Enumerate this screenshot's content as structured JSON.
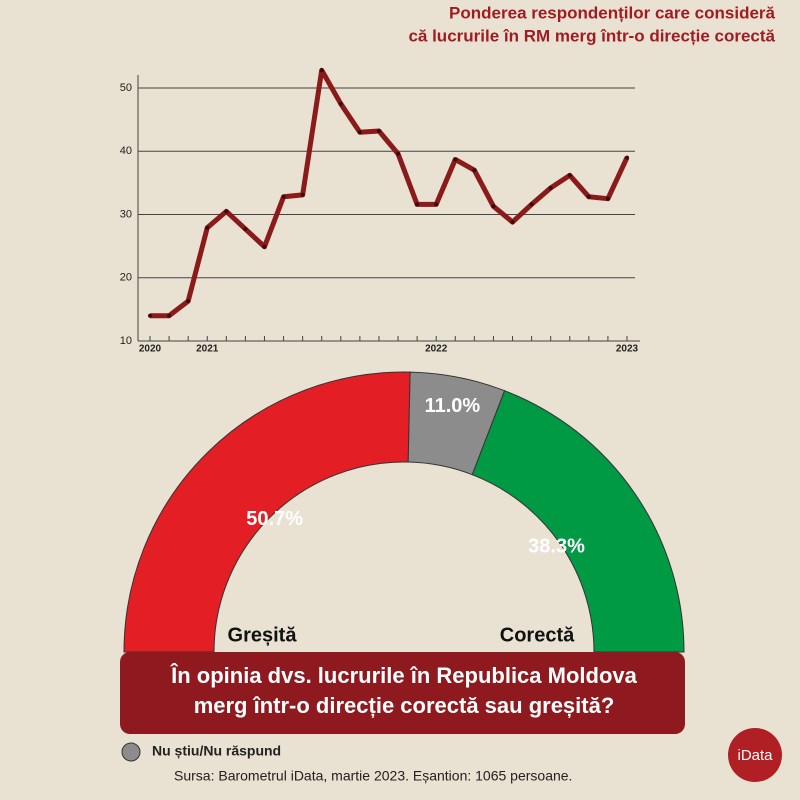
{
  "chart_data": [
    {
      "type": "line",
      "title": [
        "Ponderea respondenților care consideră",
        "că lucrurile în RM merg într-o direcție corectă"
      ],
      "categories": [
        "2020",
        null,
        null,
        "2021",
        null,
        null,
        null,
        null,
        null,
        null,
        null,
        null,
        null,
        null,
        null,
        "2022",
        null,
        null,
        null,
        null,
        null,
        null,
        null,
        null,
        null,
        "2023"
      ],
      "series": [
        {
          "name": "corectă",
          "color": "#8b1a1a",
          "values": [
            14,
            14,
            16.3,
            27.9,
            30.5,
            27.7,
            24.9,
            32.8,
            33.1,
            52.8,
            47.5,
            43,
            43.2,
            39.6,
            31.6,
            31.6,
            38.7,
            37,
            31.3,
            28.8,
            31.6,
            34.2,
            36.2,
            32.8,
            32.5,
            39
          ]
        }
      ],
      "ylim": [
        10,
        50
      ],
      "yticks": [
        10,
        20,
        30,
        40,
        50
      ],
      "grid": true
    },
    {
      "type": "half-donut",
      "title": [
        "În opinia dvs. lucrurile în Republica Moldova",
        "merg într-o direcție corectă sau greșită?"
      ],
      "categories": [
        "Greșită",
        "Nu știu/Nu răspund",
        "Corectă"
      ],
      "values": [
        50.7,
        11.0,
        38.3
      ],
      "value_labels": [
        "50.7%",
        "11.0%",
        "38.3%"
      ],
      "colors": [
        "#e31e24",
        "#8c8c8c",
        "#009a44"
      ],
      "source": "Sursa: Barometrul iData, martie 2023. Eșantion: 1065 persoane.",
      "logo": "iData"
    }
  ]
}
